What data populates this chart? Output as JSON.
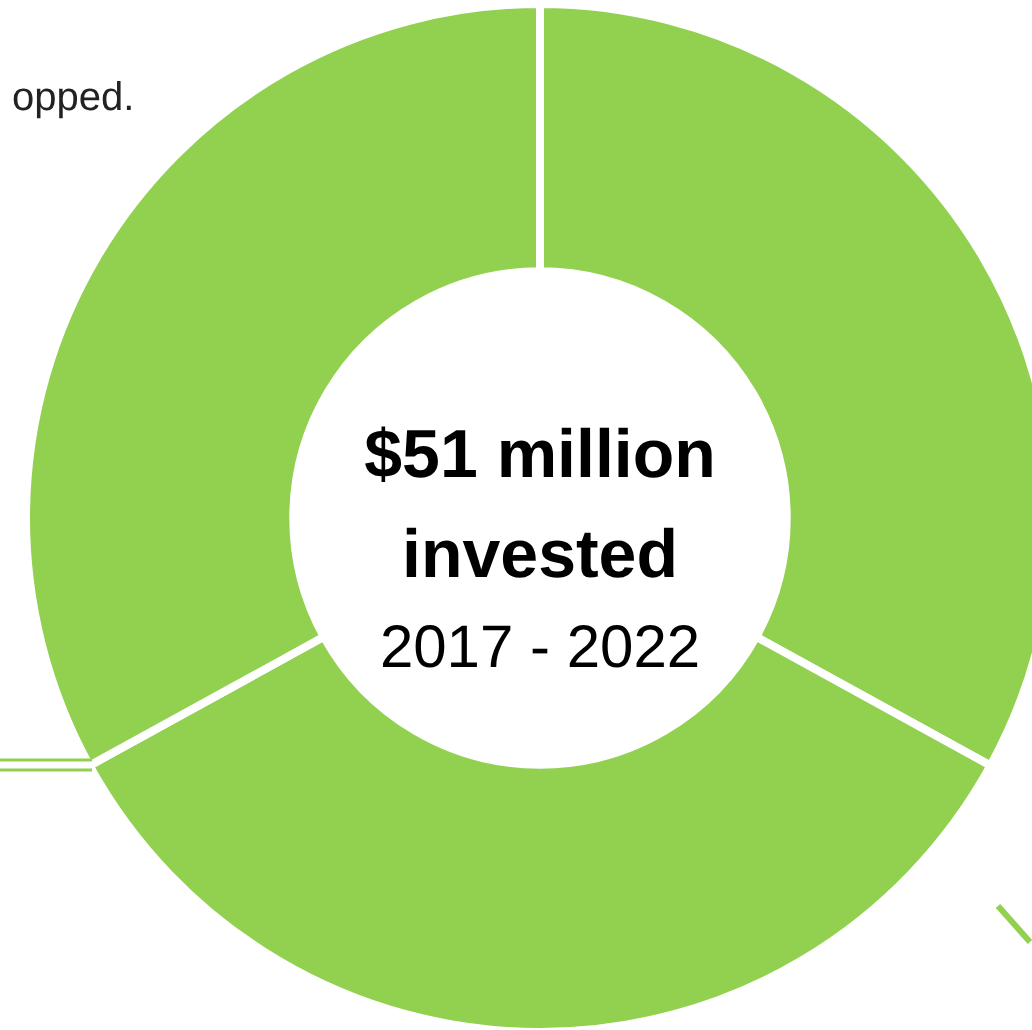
{
  "chart_data": {
    "type": "donut",
    "title": "$51 million invested",
    "subtitle": "2017 - 2022",
    "categories": [
      null,
      null,
      null
    ],
    "values": [
      33,
      34,
      33
    ],
    "colors": [
      "#92d050",
      "#92d050",
      "#92d050"
    ],
    "annotations": [
      "opped."
    ],
    "legend": false
  }
}
